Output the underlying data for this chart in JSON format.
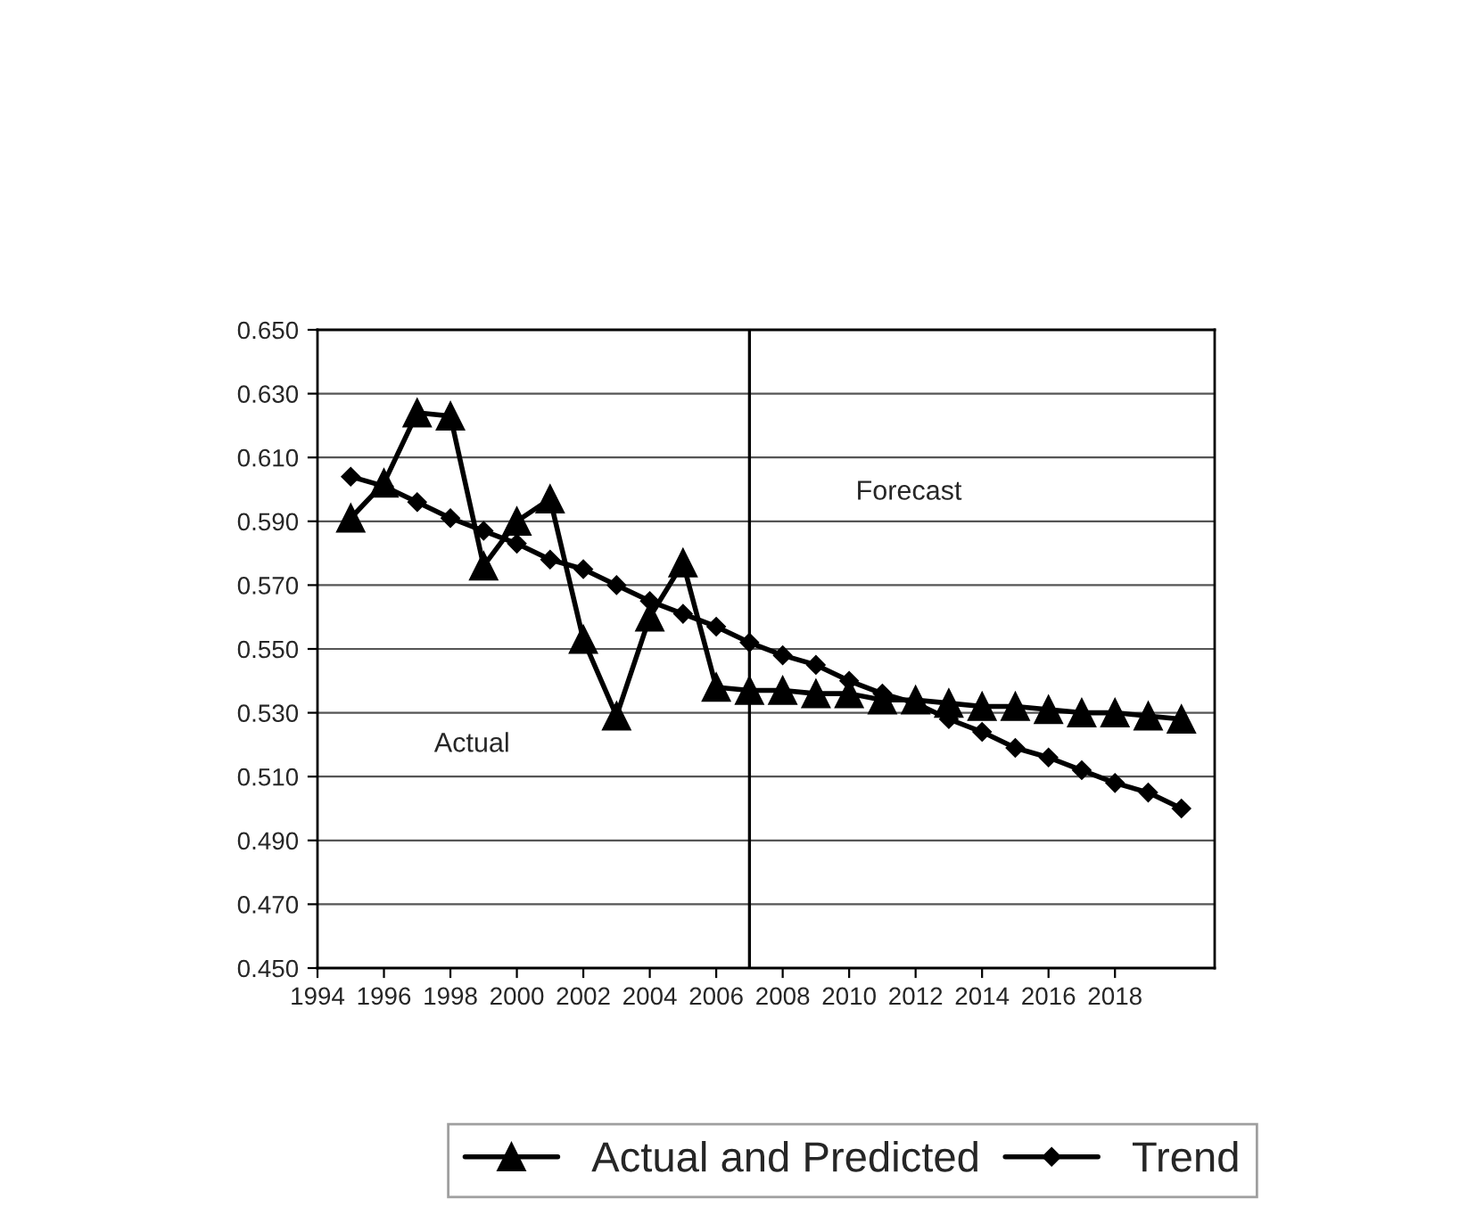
{
  "chart_data": {
    "type": "line",
    "x": [
      1995,
      1996,
      1997,
      1998,
      1999,
      2000,
      2001,
      2002,
      2003,
      2004,
      2005,
      2006,
      2007,
      2008,
      2009,
      2010,
      2011,
      2012,
      2013,
      2014,
      2015,
      2016,
      2017,
      2018,
      2019,
      2020
    ],
    "series": [
      {
        "name": "Actual and Predicted",
        "color": "#000000",
        "marker": "triangle",
        "values": [
          0.591,
          0.602,
          0.624,
          0.623,
          0.576,
          0.59,
          0.597,
          0.553,
          0.529,
          0.56,
          0.577,
          0.538,
          0.537,
          0.537,
          0.536,
          0.536,
          0.534,
          0.534,
          0.533,
          0.532,
          0.532,
          0.531,
          0.53,
          0.53,
          0.529,
          0.528
        ]
      },
      {
        "name": "Trend",
        "color": "#000000",
        "marker": "diamond",
        "values": [
          0.604,
          0.601,
          0.596,
          0.591,
          0.587,
          0.583,
          0.578,
          0.575,
          0.57,
          0.565,
          0.561,
          0.557,
          0.552,
          0.548,
          0.545,
          0.54,
          0.536,
          0.533,
          0.528,
          0.524,
          0.519,
          0.516,
          0.512,
          0.508,
          0.505,
          0.5
        ]
      }
    ],
    "xlim": [
      1994,
      2021
    ],
    "xticks": [
      1994,
      1996,
      1998,
      2000,
      2002,
      2004,
      2006,
      2008,
      2010,
      2012,
      2014,
      2016,
      2018
    ],
    "ylim": [
      0.45,
      0.65
    ],
    "yticks": [
      {
        "value": 0.45,
        "label": "0.450"
      },
      {
        "value": 0.47,
        "label": "0.470"
      },
      {
        "value": 0.49,
        "label": "0.490"
      },
      {
        "value": 0.51,
        "label": "0.510"
      },
      {
        "value": 0.53,
        "label": "0.530"
      },
      {
        "value": 0.55,
        "label": "0.550"
      },
      {
        "value": 0.57,
        "label": "0.570"
      },
      {
        "value": 0.59,
        "label": "0.590"
      },
      {
        "value": 0.61,
        "label": "0.610"
      },
      {
        "value": 0.63,
        "label": "0.630"
      },
      {
        "value": 0.65,
        "label": "0.650"
      }
    ],
    "ref_lines": [
      {
        "axis": "x",
        "value": 2007,
        "color": "#000000"
      }
    ],
    "annotations": [
      "Actual",
      "Forecast"
    ],
    "grid": "y",
    "legend": "bottom",
    "line_style": "solid"
  }
}
